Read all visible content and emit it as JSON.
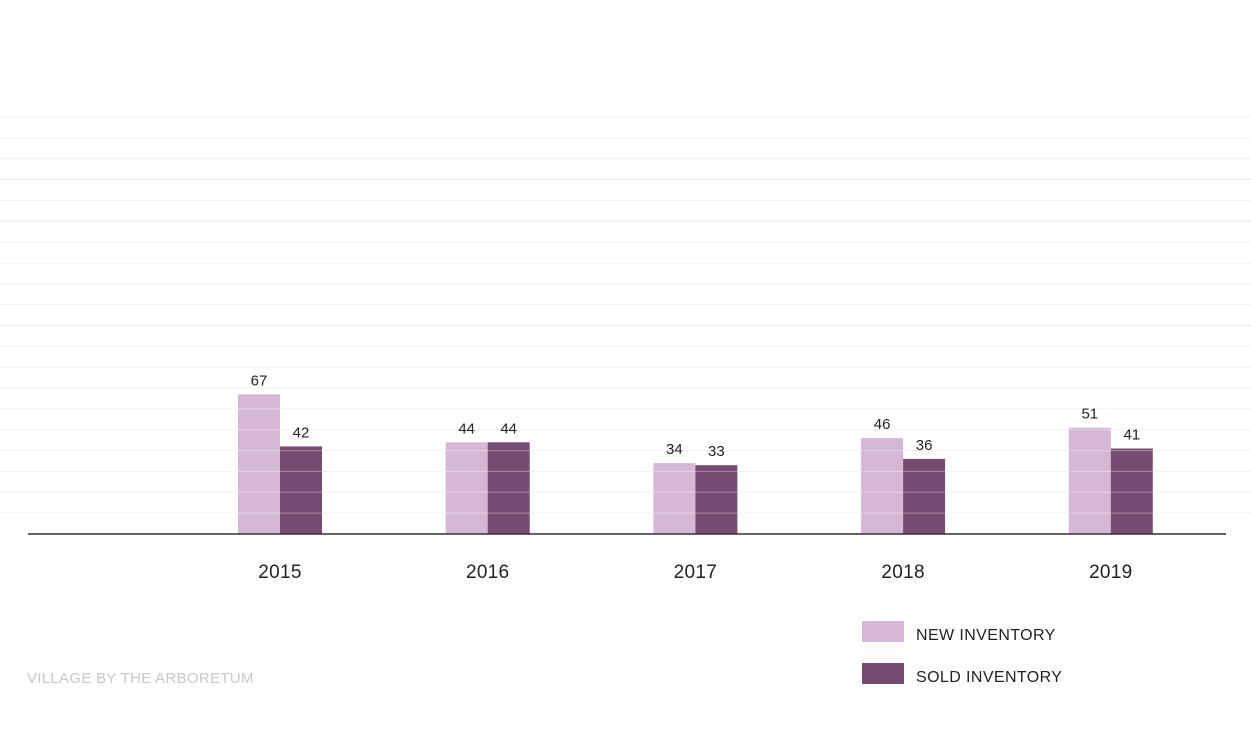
{
  "chart_data": {
    "type": "bar",
    "categories": [
      "2015",
      "2016",
      "2017",
      "2018",
      "2019"
    ],
    "series": [
      {
        "name": "NEW INVENTORY",
        "values": [
          67,
          44,
          34,
          46,
          51
        ],
        "color": "#d5b8d7"
      },
      {
        "name": "SOLD INVENTORY",
        "values": [
          42,
          44,
          33,
          36,
          41
        ],
        "color": "#774c72"
      }
    ],
    "ylim": [
      0,
      200
    ],
    "grid": true,
    "legend": "bottom-right",
    "data_labels": true
  },
  "footer": {
    "source": "VILLAGE BY THE ARBORETUM"
  }
}
